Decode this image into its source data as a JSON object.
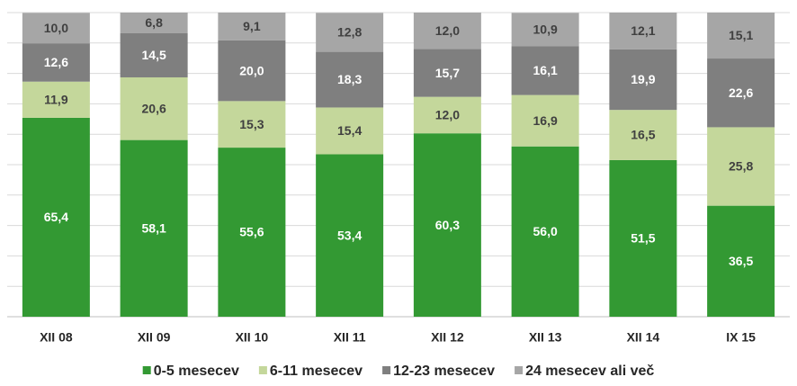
{
  "chart_data": {
    "type": "stacked_bar",
    "categories": [
      "XII 08",
      "XII 09",
      "XII 10",
      "XII 11",
      "XII 12",
      "XII 13",
      "XII 14",
      "IX 15"
    ],
    "series": [
      {
        "name": "0-5 mesecev",
        "color": "#339933",
        "values": [
          65.4,
          58.1,
          55.6,
          53.4,
          60.3,
          56.0,
          51.5,
          36.5
        ],
        "value_labels": [
          "65,4",
          "58,1",
          "55,6",
          "53,4",
          "60,3",
          "56,0",
          "51,5",
          "36,5"
        ]
      },
      {
        "name": "6-11 mesecev",
        "color": "#c4d79b",
        "values": [
          11.9,
          20.6,
          15.3,
          15.4,
          12.0,
          16.9,
          16.5,
          25.8
        ],
        "value_labels": [
          "11,9",
          "20,6",
          "15,3",
          "15,4",
          "12,0",
          "16,9",
          "16,5",
          "25,8"
        ]
      },
      {
        "name": "12-23 mesecev",
        "color": "#7f7f7f",
        "values": [
          12.6,
          14.5,
          20.0,
          18.3,
          15.7,
          16.1,
          19.9,
          22.6
        ],
        "value_labels": [
          "12,6",
          "14,5",
          "20,0",
          "18,3",
          "15,7",
          "16,1",
          "19,9",
          "22,6"
        ]
      },
      {
        "name": "24 mesecev ali več",
        "color": "#a6a6a6",
        "values": [
          10.0,
          6.8,
          9.1,
          12.8,
          12.0,
          10.9,
          12.1,
          15.1
        ],
        "value_labels": [
          "10,0",
          "6,8",
          "9,1",
          "12,8",
          "12,0",
          "10,9",
          "12,1",
          "15,1"
        ]
      }
    ],
    "ylim": [
      0,
      100
    ],
    "yticks": [
      0,
      10,
      20,
      30,
      40,
      50,
      60,
      70,
      80,
      90,
      100
    ],
    "grid": true,
    "legend": "bottom"
  }
}
